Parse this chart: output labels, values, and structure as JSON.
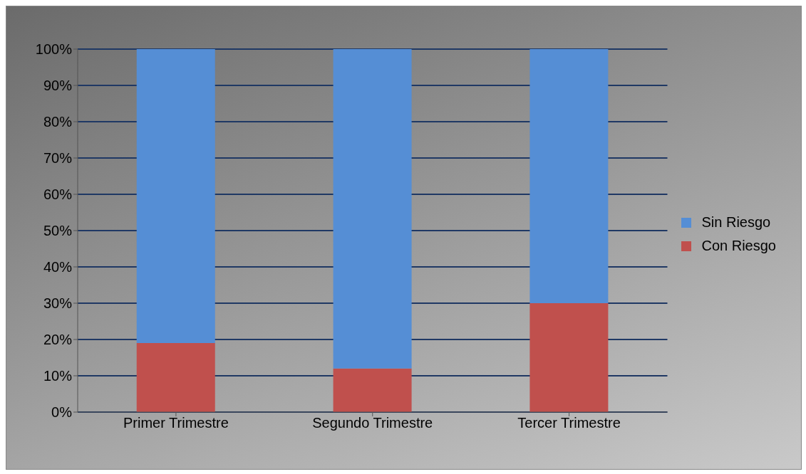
{
  "chart_data": {
    "type": "bar",
    "stacked": true,
    "categories": [
      "Primer Trimestre",
      "Segundo Trimestre",
      "Tercer Trimestre"
    ],
    "series": [
      {
        "name": "Con Riesgo",
        "color": "#c0504d",
        "values": [
          19,
          12,
          30
        ]
      },
      {
        "name": "Sin Riesgo",
        "color": "#558ed5",
        "values": [
          81,
          88,
          70
        ]
      }
    ],
    "ylim": [
      0,
      100
    ],
    "yticks": [
      {
        "value": 0,
        "label": "0%"
      },
      {
        "value": 10,
        "label": "10%"
      },
      {
        "value": 20,
        "label": "20%"
      },
      {
        "value": 30,
        "label": "30%"
      },
      {
        "value": 40,
        "label": "40%"
      },
      {
        "value": 50,
        "label": "50%"
      },
      {
        "value": 60,
        "label": "60%"
      },
      {
        "value": 70,
        "label": "70%"
      },
      {
        "value": 80,
        "label": "80%"
      },
      {
        "value": 90,
        "label": "90%"
      },
      {
        "value": 100,
        "label": "100%"
      }
    ],
    "grid": "y",
    "legend": "right"
  }
}
